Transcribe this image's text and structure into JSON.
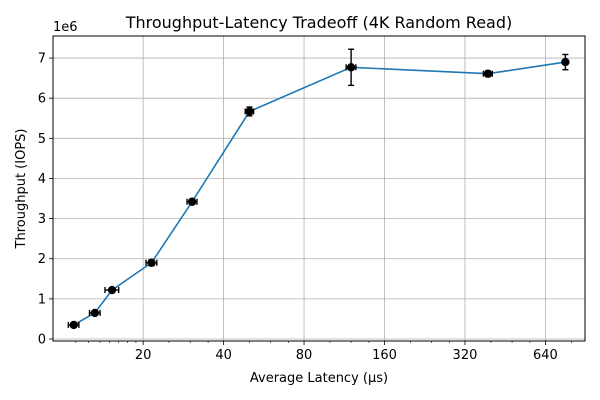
{
  "chart_data": {
    "type": "line",
    "title": "Throughput-Latency Tradeoff (4K Random Read)",
    "xlabel": "Average Latency (µs)",
    "ylabel": "Throughput (IOPS)",
    "y_offset_label": "1e6",
    "x_scale": "log2",
    "xlim": [
      9.2,
      900
    ],
    "ylim": [
      -50000,
      7550000
    ],
    "x_ticks": [
      20,
      40,
      80,
      160,
      320,
      640
    ],
    "x_tick_labels": [
      "20",
      "40",
      "80",
      "160",
      "320",
      "640"
    ],
    "y_ticks": [
      0,
      1000000,
      2000000,
      3000000,
      4000000,
      5000000,
      6000000,
      7000000
    ],
    "y_tick_labels": [
      "0",
      "1",
      "2",
      "3",
      "4",
      "5",
      "6",
      "7"
    ],
    "grid": true,
    "series_color": "#1f77b4",
    "marker_color": "#000000",
    "points": [
      {
        "x": 11.0,
        "y": 350000,
        "xerr": 0.5,
        "yerr": 40000
      },
      {
        "x": 13.2,
        "y": 650000,
        "xerr": 0.6,
        "yerr": 40000
      },
      {
        "x": 15.3,
        "y": 1220000,
        "xerr": 0.9,
        "yerr": 50000
      },
      {
        "x": 21.5,
        "y": 1900000,
        "xerr": 1.0,
        "yerr": 70000
      },
      {
        "x": 30.5,
        "y": 3420000,
        "xerr": 1.3,
        "yerr": 60000
      },
      {
        "x": 50.0,
        "y": 5670000,
        "xerr": 1.8,
        "yerr": 110000
      },
      {
        "x": 120.0,
        "y": 6770000,
        "xerr": 5.0,
        "yerr": 450000
      },
      {
        "x": 390.0,
        "y": 6610000,
        "xerr": 15.0,
        "yerr": 70000
      },
      {
        "x": 760.0,
        "y": 6900000,
        "xerr": 10.0,
        "yerr": 190000
      }
    ]
  }
}
